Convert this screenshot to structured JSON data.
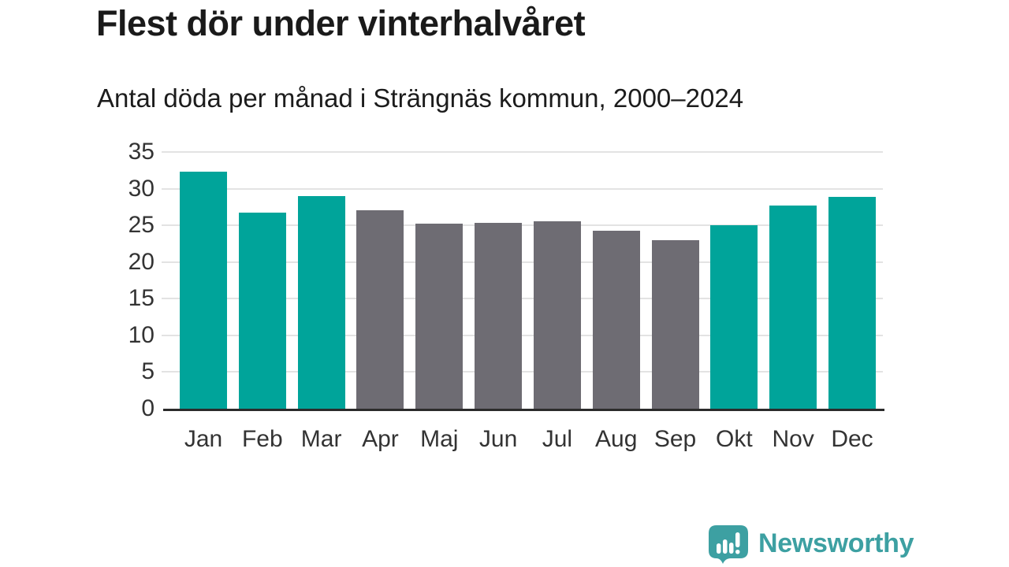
{
  "header": {
    "title": "Flest dör under vinterhalvåret",
    "subtitle": "Antal döda per månad i Strängnäs kommun, 2000–2024"
  },
  "chart_data": {
    "type": "bar",
    "title": "Flest dör under vinterhalvåret",
    "subtitle": "Antal döda per månad i Strängnäs kommun, 2000–2024",
    "categories": [
      "Jan",
      "Feb",
      "Mar",
      "Apr",
      "Maj",
      "Jun",
      "Jul",
      "Aug",
      "Sep",
      "Okt",
      "Nov",
      "Dec"
    ],
    "values": [
      32.3,
      26.7,
      29.0,
      27.1,
      25.2,
      25.3,
      25.5,
      24.3,
      23.0,
      25.0,
      27.7,
      28.9
    ],
    "highlighted": [
      true,
      true,
      true,
      false,
      false,
      false,
      false,
      false,
      false,
      true,
      true,
      true
    ],
    "xlabel": "",
    "ylabel": "",
    "ylim": [
      0,
      35
    ],
    "yticks": [
      0,
      5,
      10,
      15,
      20,
      25,
      30,
      35
    ],
    "grid": true,
    "legend": false,
    "colors": {
      "highlight": "#00a49a",
      "default": "#6e6c73",
      "gridline": "#e3e3e3",
      "axis_line": "#2b2b2b",
      "tick_label": "#333333"
    }
  },
  "branding": {
    "logo_text": "Newsworthy",
    "logo_icon": "bar-chart-speech-bubble-icon",
    "logo_color": "#3da0a2"
  }
}
